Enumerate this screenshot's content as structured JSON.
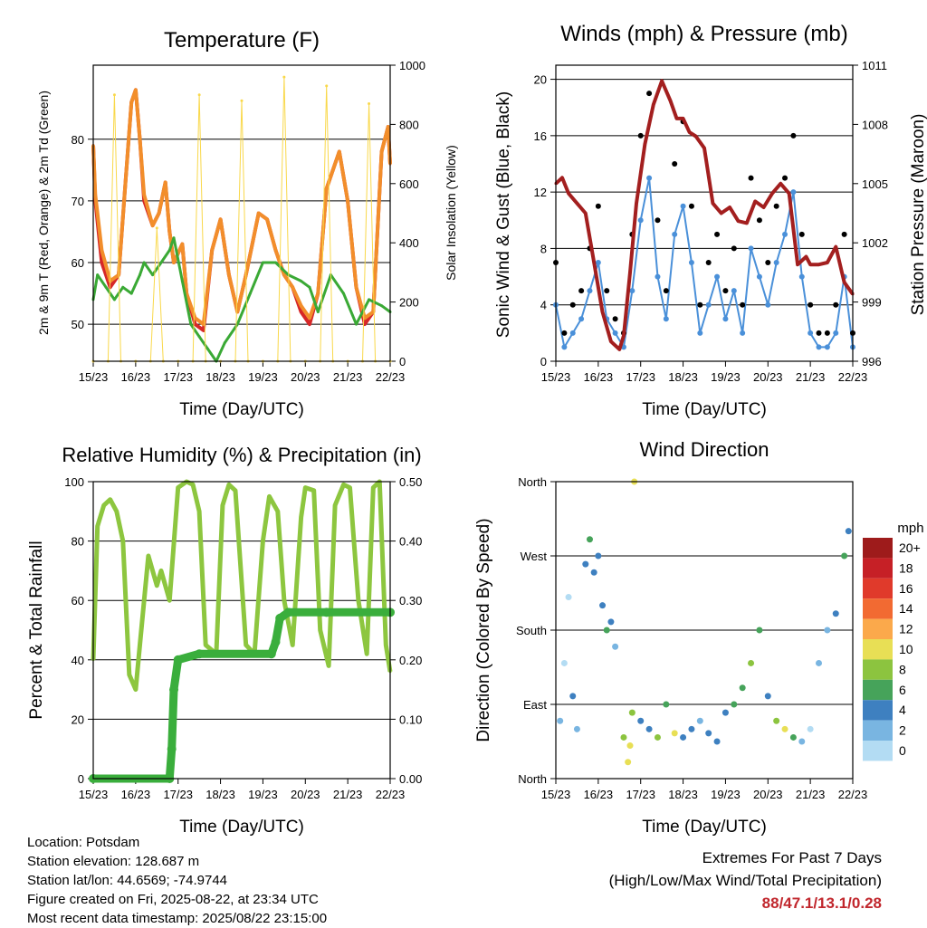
{
  "panels": {
    "temperature": {
      "title": "Temperature (F)",
      "ylabel_left": "2m & 9m T (Red, Orange) & 2m Td (Green)",
      "ylabel_right": "Solar Insolation (Yellow)",
      "xlabel": "Time (Day/UTC)"
    },
    "winds": {
      "title": "Winds (mph) & Pressure (mb)",
      "ylabel_left": "Sonic Wind & Gust (Blue, Black)",
      "ylabel_right": "Station Pressure (Maroon)",
      "xlabel": "Time (Day/UTC)"
    },
    "humidity": {
      "title": "Relative Humidity (%) & Precipitation (in)",
      "ylabel_left": "Percent & Total Rainfall",
      "xlabel": "Time (Day/UTC)"
    },
    "direction": {
      "title": "Wind Direction",
      "ylabel_left": "Direction (Colored By Speed)",
      "xlabel": "Time (Day/UTC)"
    }
  },
  "colorbar": {
    "unit": "mph",
    "labels": [
      "20+",
      "18",
      "16",
      "14",
      "12",
      "10",
      "8",
      "6",
      "4",
      "2",
      "0"
    ],
    "colors": [
      "#9e1b1b",
      "#c62026",
      "#e03a2b",
      "#f26a32",
      "#fba94b",
      "#e8df55",
      "#8cc43f",
      "#46a35a",
      "#3e80c0",
      "#79b5e1",
      "#b3dcf3"
    ]
  },
  "info": {
    "location": "Location: Potsdam",
    "elevation": "Station elevation: 128.687 m",
    "latlon": "Station lat/lon: 44.6569; -74.9744",
    "created": "Figure created on Fri, 2025-08-22, at 23:34 UTC",
    "recent": "Most recent data timestamp: 2025/08/22 23:15:00"
  },
  "extremes": {
    "line1": "Extremes For Past 7 Days",
    "line2": "(High/Low/Max Wind/Total Precipitation)",
    "values": "88/47.1/13.1/0.28"
  },
  "chart_data": [
    {
      "id": "temperature",
      "type": "line",
      "title": "Temperature (F)",
      "xlabel": "Time (Day/UTC)",
      "ylabel": "2m & 9m T (Red, Orange) & 2m Td (Green)",
      "ylabel_right": "Solar Insolation (Yellow)",
      "x_ticks": [
        "15/23",
        "16/23",
        "17/23",
        "18/23",
        "19/23",
        "20/23",
        "21/23",
        "22/23"
      ],
      "xlim": [
        0,
        7
      ],
      "ylim": [
        44,
        92
      ],
      "yticks": [
        50,
        60,
        70,
        80
      ],
      "ylim_right": [
        0,
        1000
      ],
      "yticks_right": [
        0,
        200,
        400,
        600,
        800,
        1000
      ],
      "grid": true,
      "series": [
        {
          "name": "2m T",
          "color": "#d62728",
          "axis": "left",
          "x": [
            0,
            0.05,
            0.2,
            0.4,
            0.6,
            0.75,
            0.9,
            1.0,
            1.1,
            1.2,
            1.4,
            1.55,
            1.7,
            1.8,
            1.9,
            2.1,
            2.2,
            2.4,
            2.6,
            2.8,
            3.0,
            3.2,
            3.4,
            3.6,
            3.9,
            4.1,
            4.3,
            4.5,
            4.7,
            4.9,
            5.1,
            5.3,
            5.5,
            5.8,
            6.0,
            6.2,
            6.4,
            6.6,
            6.8,
            6.95,
            7.0
          ],
          "y": [
            79,
            70,
            60,
            56,
            58,
            72,
            86,
            88,
            80,
            70,
            66,
            68,
            73,
            65,
            60,
            63,
            55,
            50,
            49,
            62,
            67,
            58,
            52,
            58,
            68,
            67,
            62,
            58,
            56,
            52,
            50,
            55,
            72,
            78,
            70,
            56,
            50,
            52,
            78,
            82,
            76
          ]
        },
        {
          "name": "9m T",
          "color": "#f28e2b",
          "axis": "left",
          "x": [
            0,
            0.05,
            0.2,
            0.4,
            0.6,
            0.75,
            0.9,
            1.0,
            1.1,
            1.2,
            1.4,
            1.55,
            1.7,
            1.8,
            1.9,
            2.1,
            2.2,
            2.4,
            2.6,
            2.8,
            3.0,
            3.2,
            3.4,
            3.6,
            3.9,
            4.1,
            4.3,
            4.5,
            4.7,
            4.9,
            5.1,
            5.3,
            5.5,
            5.8,
            6.0,
            6.2,
            6.4,
            6.6,
            6.8,
            6.95,
            7.0
          ],
          "y": [
            79,
            71,
            62,
            57,
            58,
            72,
            86,
            88,
            80,
            71,
            66,
            68,
            73,
            65,
            60,
            63,
            55,
            51,
            50,
            62,
            67,
            58,
            52,
            58,
            68,
            67,
            62,
            58,
            56,
            53,
            51,
            55,
            72,
            78,
            70,
            56,
            51,
            52,
            78,
            82,
            76
          ]
        },
        {
          "name": "2m Td",
          "color": "#3aa935",
          "axis": "left",
          "x": [
            0,
            0.1,
            0.3,
            0.5,
            0.7,
            0.9,
            1.1,
            1.2,
            1.4,
            1.6,
            1.8,
            1.9,
            2.1,
            2.3,
            2.5,
            2.7,
            2.9,
            3.1,
            3.4,
            3.7,
            4.0,
            4.3,
            4.6,
            4.9,
            5.1,
            5.3,
            5.6,
            5.9,
            6.2,
            6.5,
            6.8,
            7.0
          ],
          "y": [
            54,
            58,
            56,
            54,
            56,
            55,
            58,
            60,
            58,
            60,
            62,
            64,
            57,
            50,
            48,
            46,
            44,
            47,
            50,
            55,
            60,
            60,
            58,
            57,
            56,
            52,
            58,
            55,
            50,
            54,
            53,
            52
          ]
        },
        {
          "name": "Solar Insolation",
          "color": "#f9d84a",
          "axis": "right",
          "x": [
            0,
            0.35,
            0.5,
            0.65,
            1.0,
            1.35,
            1.5,
            1.65,
            2.0,
            2.35,
            2.5,
            2.65,
            3.0,
            3.35,
            3.5,
            3.65,
            4.0,
            4.35,
            4.5,
            4.65,
            5.0,
            5.35,
            5.5,
            5.65,
            6.0,
            6.35,
            6.5,
            6.65,
            7.0
          ],
          "y": [
            0,
            0,
            900,
            0,
            0,
            0,
            450,
            0,
            0,
            0,
            900,
            0,
            0,
            0,
            880,
            0,
            0,
            0,
            960,
            0,
            0,
            0,
            930,
            0,
            0,
            0,
            870,
            0,
            0
          ]
        }
      ]
    },
    {
      "id": "winds",
      "type": "scatter",
      "title": "Winds (mph) & Pressure (mb)",
      "xlabel": "Time (Day/UTC)",
      "ylabel": "Sonic Wind & Gust (Blue, Black)",
      "ylabel_right": "Station Pressure (Maroon)",
      "x_ticks": [
        "15/23",
        "16/23",
        "17/23",
        "18/23",
        "19/23",
        "20/23",
        "21/23",
        "22/23"
      ],
      "xlim": [
        0,
        7
      ],
      "ylim": [
        0,
        21
      ],
      "yticks": [
        0,
        4,
        8,
        12,
        16,
        20
      ],
      "ylim_right": [
        996,
        1011
      ],
      "yticks_right": [
        996,
        999,
        1002,
        1005,
        1008,
        1011
      ],
      "grid": true,
      "series": [
        {
          "name": "Sonic Wind",
          "color": "#4a90d9",
          "x": [
            0,
            0.2,
            0.4,
            0.6,
            0.8,
            1.0,
            1.2,
            1.4,
            1.6,
            1.8,
            2.0,
            2.2,
            2.4,
            2.6,
            2.8,
            3.0,
            3.2,
            3.4,
            3.6,
            3.8,
            4.0,
            4.2,
            4.4,
            4.6,
            4.8,
            5.0,
            5.2,
            5.4,
            5.6,
            5.8,
            6.0,
            6.2,
            6.4,
            6.6,
            6.8,
            7.0
          ],
          "y": [
            4,
            1,
            2,
            3,
            5,
            7,
            3,
            2,
            1,
            5,
            10,
            13,
            6,
            3,
            9,
            11,
            7,
            2,
            4,
            6,
            3,
            5,
            2,
            8,
            6,
            4,
            7,
            9,
            12,
            6,
            2,
            1,
            1,
            2,
            6,
            1
          ]
        },
        {
          "name": "Gust",
          "color": "#000000",
          "x": [
            0,
            0.2,
            0.4,
            0.6,
            0.8,
            1.0,
            1.2,
            1.4,
            1.6,
            1.8,
            2.0,
            2.2,
            2.4,
            2.6,
            2.8,
            3.0,
            3.2,
            3.4,
            3.6,
            3.8,
            4.0,
            4.2,
            4.4,
            4.6,
            4.8,
            5.0,
            5.2,
            5.4,
            5.6,
            5.8,
            6.0,
            6.2,
            6.4,
            6.6,
            6.8,
            7.0
          ],
          "y": [
            7,
            2,
            4,
            5,
            8,
            11,
            5,
            3,
            2,
            9,
            16,
            19,
            10,
            5,
            14,
            17,
            11,
            4,
            7,
            9,
            5,
            8,
            4,
            13,
            10,
            7,
            11,
            13,
            16,
            9,
            4,
            2,
            2,
            4,
            9,
            2
          ]
        },
        {
          "name": "Station Pressure",
          "color": "#a31f1f",
          "axis": "right",
          "x": [
            0,
            0.15,
            0.3,
            0.5,
            0.7,
            0.9,
            1.1,
            1.3,
            1.5,
            1.6,
            1.75,
            1.9,
            2.1,
            2.3,
            2.5,
            2.7,
            2.85,
            3.0,
            3.15,
            3.3,
            3.5,
            3.7,
            3.9,
            4.1,
            4.3,
            4.5,
            4.7,
            4.9,
            5.1,
            5.3,
            5.5,
            5.7,
            5.9,
            6.0,
            6.2,
            6.4,
            6.6,
            6.8,
            7.0
          ],
          "y": [
            1005,
            1005.3,
            1004.5,
            1004,
            1003.5,
            1001,
            998.5,
            997,
            996.6,
            997.3,
            1000.5,
            1004,
            1007,
            1009,
            1010.2,
            1009.2,
            1008.3,
            1008.3,
            1007.6,
            1007.4,
            1006.8,
            1004,
            1003.5,
            1003.8,
            1003.1,
            1003,
            1004.1,
            1003.8,
            1004.5,
            1005,
            1004.5,
            1000.9,
            1001.3,
            1000.9,
            1000.9,
            1001,
            1001.8,
            1000,
            999.4
          ]
        }
      ]
    },
    {
      "id": "humidity",
      "type": "line",
      "title": "Relative Humidity (%) & Precipitation (in)",
      "xlabel": "Time (Day/UTC)",
      "ylabel": "Percent & Total Rainfall",
      "x_ticks": [
        "15/23",
        "16/23",
        "17/23",
        "18/23",
        "19/23",
        "20/23",
        "21/23",
        "22/23"
      ],
      "xlim": [
        0,
        7
      ],
      "ylim": [
        0,
        100
      ],
      "yticks": [
        0,
        20,
        40,
        60,
        80,
        100
      ],
      "ylim_right": [
        0,
        0.5
      ],
      "yticks_right": [
        "0.00",
        "0.10",
        "0.20",
        "0.30",
        "0.40",
        "0.50"
      ],
      "grid": true,
      "series": [
        {
          "name": "Relative Humidity",
          "color": "#8dc63f",
          "axis": "left",
          "x": [
            0,
            0.1,
            0.25,
            0.4,
            0.55,
            0.7,
            0.85,
            1.0,
            1.1,
            1.3,
            1.5,
            1.6,
            1.8,
            2.0,
            2.2,
            2.35,
            2.5,
            2.65,
            2.9,
            3.05,
            3.2,
            3.35,
            3.6,
            3.8,
            4.0,
            4.15,
            4.35,
            4.5,
            4.7,
            4.9,
            5.0,
            5.2,
            5.35,
            5.55,
            5.7,
            5.9,
            6.05,
            6.25,
            6.45,
            6.6,
            6.75,
            6.9,
            7.0
          ],
          "y": [
            40,
            85,
            92,
            94,
            90,
            80,
            35,
            30,
            45,
            75,
            65,
            70,
            60,
            98,
            100,
            99,
            90,
            45,
            42,
            92,
            99,
            97,
            45,
            42,
            80,
            95,
            90,
            60,
            45,
            88,
            98,
            97,
            50,
            38,
            92,
            99,
            98,
            60,
            42,
            98,
            100,
            45,
            36
          ]
        },
        {
          "name": "Total Rainfall",
          "color": "#3aae3c",
          "axis": "right",
          "x": [
            0,
            1.8,
            1.85,
            1.9,
            2.0,
            2.5,
            4.2,
            4.3,
            4.4,
            4.6,
            5.5,
            7.0
          ],
          "y": [
            0,
            0,
            0.05,
            0.15,
            0.2,
            0.21,
            0.21,
            0.23,
            0.27,
            0.28,
            0.28,
            0.28
          ]
        }
      ]
    },
    {
      "id": "direction",
      "type": "scatter",
      "title": "Wind Direction",
      "xlabel": "Time (Day/UTC)",
      "ylabel": "Direction (Colored By Speed)",
      "x_ticks": [
        "15/23",
        "16/23",
        "17/23",
        "18/23",
        "19/23",
        "20/23",
        "21/23",
        "22/23"
      ],
      "y_ticks": [
        "North",
        "East",
        "South",
        "West",
        "North"
      ],
      "xlim": [
        0,
        7
      ],
      "ylim": [
        0,
        360
      ],
      "grid": true,
      "colorbar": "mph",
      "series": [
        {
          "name": "Direction",
          "x": [
            0.1,
            0.2,
            0.3,
            0.4,
            0.5,
            0.7,
            0.8,
            0.9,
            1.0,
            1.1,
            1.2,
            1.3,
            1.4,
            1.6,
            1.7,
            1.75,
            1.8,
            1.85,
            2.0,
            2.2,
            2.4,
            2.6,
            2.8,
            3.0,
            3.2,
            3.4,
            3.6,
            3.8,
            4.0,
            4.2,
            4.4,
            4.6,
            4.8,
            5.0,
            5.2,
            5.4,
            5.6,
            5.8,
            6.0,
            6.2,
            6.4,
            6.6,
            6.8,
            6.9
          ],
          "y": [
            70,
            140,
            220,
            100,
            60,
            260,
            290,
            250,
            270,
            210,
            180,
            190,
            160,
            50,
            20,
            40,
            80,
            360,
            70,
            60,
            50,
            90,
            55,
            50,
            60,
            70,
            55,
            45,
            80,
            90,
            110,
            140,
            180,
            100,
            70,
            60,
            50,
            45,
            60,
            140,
            180,
            200,
            270,
            300
          ],
          "speed": [
            2,
            0,
            0,
            4,
            2,
            4,
            6,
            4,
            3,
            4,
            5,
            3,
            2,
            8,
            10,
            9,
            8,
            10,
            4,
            3,
            8,
            6,
            10,
            4,
            3,
            2,
            4,
            3,
            4,
            5,
            6,
            7,
            6,
            3,
            8,
            9,
            6,
            2,
            0,
            1,
            2,
            3,
            5,
            4
          ]
        }
      ]
    }
  ]
}
